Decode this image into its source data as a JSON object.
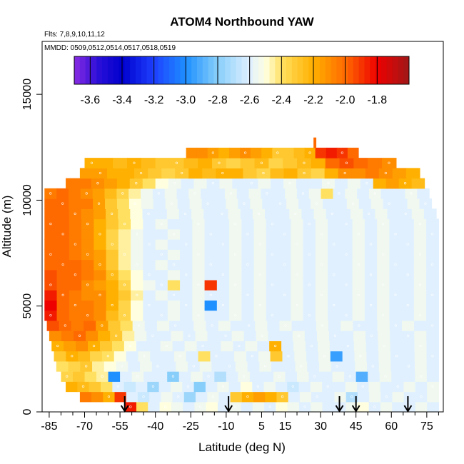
{
  "chart_data": {
    "type": "heatmap",
    "title": "ATOM4 Northbound YAW",
    "flights_label": "Flts: 7,8,9,10,11,12",
    "dates_label": "MMDD: 0509,0512,0514,0517,0518,0519",
    "xlabel": "Latitude (deg N)",
    "ylabel": "Altitude (m)",
    "xlim": [
      -88,
      82
    ],
    "ylim": [
      0,
      17500
    ],
    "x_ticks": [
      -85,
      -70,
      -55,
      -40,
      -25,
      -10,
      5,
      15,
      30,
      45,
      60,
      75
    ],
    "x_tick_labels": [
      "-85",
      "-70",
      "-55",
      "-40",
      "-25",
      "-10",
      "5",
      "15",
      "30",
      "45",
      "60",
      "75"
    ],
    "x_minor_ticks": [
      -80,
      -75,
      -65,
      -60,
      -50,
      -45,
      -35,
      -30,
      -20,
      -15,
      -5,
      0,
      10,
      20,
      25,
      35,
      40,
      50,
      55,
      65,
      70,
      80
    ],
    "y_ticks": [
      0,
      5000,
      10000,
      15000
    ],
    "y_tick_labels": [
      "0",
      "5000",
      "10000",
      "15000"
    ],
    "colorbar": {
      "min": -3.7,
      "max": -1.6,
      "ticks": [
        -3.6,
        -3.4,
        -3.2,
        -3.0,
        -2.8,
        -2.6,
        -2.4,
        -2.2,
        -2.0,
        -1.8
      ],
      "tick_labels": [
        "-3.6",
        "-3.4",
        "-3.2",
        "-3.0",
        "-2.8",
        "-2.6",
        "-2.4",
        "-2.2",
        "-2.0",
        "-1.8"
      ],
      "stops": [
        {
          "v": -3.7,
          "color": "#8a2be2"
        },
        {
          "v": -3.55,
          "color": "#2a0fd8"
        },
        {
          "v": -3.4,
          "color": "#0000cd"
        },
        {
          "v": -3.2,
          "color": "#1e40ff"
        },
        {
          "v": -3.0,
          "color": "#1e90ff"
        },
        {
          "v": -2.8,
          "color": "#87cefa"
        },
        {
          "v": -2.6,
          "color": "#e0f0ff"
        },
        {
          "v": -2.5,
          "color": "#ffffe0"
        },
        {
          "v": -2.4,
          "color": "#ffe060"
        },
        {
          "v": -2.2,
          "color": "#ffb000"
        },
        {
          "v": -2.0,
          "color": "#ff6a00"
        },
        {
          "v": -1.8,
          "color": "#ee0000"
        },
        {
          "v": -1.6,
          "color": "#a01818"
        }
      ]
    },
    "profile_arrows_lat": [
      -53,
      -9,
      38,
      45,
      67
    ],
    "row_height_m": 480,
    "rows": [
      {
        "y0": 0,
        "lat_min": -53,
        "lat_max": 80,
        "values": [
          -1.85,
          -2.4,
          -2.6,
          -2.5,
          -2.55,
          -2.6,
          -2.55,
          -2.5,
          -2.6,
          -2.55,
          -2.6,
          -2.55,
          -2.6,
          -2.5,
          -2.55,
          -2.6,
          -2.55,
          -2.6,
          -2.6,
          -2.55,
          -2.5,
          -2.6,
          -2.55,
          -2.6,
          -2.6,
          -2.55,
          -2.6
        ]
      },
      {
        "y0": 480,
        "lat_min": -72,
        "lat_max": 80,
        "values": [
          -2.05,
          -2.1,
          -2.2,
          -1.9,
          -2.6,
          -2.65,
          -2.6,
          -2.55,
          -2.6,
          -2.75,
          -2.6,
          -2.55,
          -2.6,
          -2.3,
          -2.2,
          -2.15,
          -2.2,
          -2.3,
          -2.6,
          -2.55,
          -2.6,
          -2.6,
          -2.55,
          -2.7,
          -2.6,
          -2.55,
          -2.6,
          -2.55,
          -2.6,
          -2.6,
          -2.55
        ]
      },
      {
        "y0": 960,
        "lat_min": -78,
        "lat_max": 80,
        "values": [
          -2.2,
          -2.25,
          -2.3,
          -2.4,
          -2.6,
          -2.65,
          -2.6,
          -2.75,
          -2.6,
          -2.55,
          -2.6,
          -2.8,
          -2.6,
          -2.55,
          -2.6,
          -2.5,
          -2.6,
          -2.55,
          -2.6,
          -2.65,
          -2.6,
          -2.55,
          -2.6,
          -2.6,
          -2.55,
          -2.6,
          -2.55,
          -2.6,
          -2.6,
          -2.55,
          -2.6,
          -2.55
        ]
      },
      {
        "y0": 1440,
        "lat_min": -80,
        "lat_max": 80,
        "values": [
          -2.35,
          -2.3,
          -2.4,
          -2.45,
          -3.0,
          -2.6,
          -2.55,
          -2.6,
          -2.6,
          -2.8,
          -2.6,
          -2.55,
          -2.6,
          -2.7,
          -2.6,
          -2.55,
          -2.6,
          -2.6,
          -2.55,
          -2.6,
          -2.55,
          -2.6,
          -2.6,
          -2.55,
          -2.6,
          -2.9,
          -2.6,
          -2.55,
          -2.6,
          -2.6,
          -2.55,
          -2.6
        ]
      },
      {
        "y0": 1920,
        "lat_min": -82,
        "lat_max": 80,
        "values": [
          -2.4,
          -2.35,
          -2.3,
          -2.45,
          -2.5,
          -2.55,
          -2.6,
          -2.55,
          -2.6,
          -2.6,
          -2.55,
          -2.6,
          -2.55,
          -2.6,
          -2.6,
          -2.55,
          -2.6,
          -2.55,
          -2.6,
          -2.6,
          -2.55,
          -2.6,
          -2.55,
          -2.6,
          -2.6,
          -2.55,
          -2.6,
          -2.55,
          -2.6,
          -2.6,
          -2.55,
          -2.6
        ]
      },
      {
        "y0": 2400,
        "lat_min": -83,
        "lat_max": 80,
        "values": [
          -2.3,
          -2.2,
          -2.25,
          -2.35,
          -2.4,
          -2.5,
          -2.6,
          -2.55,
          -2.6,
          -2.6,
          -2.55,
          -2.6,
          -2.4,
          -2.6,
          -2.6,
          -2.55,
          -2.6,
          -2.55,
          -2.3,
          -2.6,
          -2.55,
          -2.6,
          -2.55,
          -2.95,
          -2.6,
          -2.55,
          -2.6,
          -2.55,
          -2.6,
          -2.6,
          -2.55,
          -2.6
        ]
      },
      {
        "y0": 2880,
        "lat_min": -84,
        "lat_max": 80,
        "values": [
          -2.2,
          -2.15,
          -2.1,
          -2.2,
          -2.3,
          -2.4,
          -2.5,
          -2.6,
          -2.6,
          -2.55,
          -2.6,
          -2.55,
          -2.6,
          -2.6,
          -2.55,
          -2.6,
          -2.55,
          -2.6,
          -2.2,
          -2.6,
          -2.55,
          -2.6,
          -2.55,
          -2.6,
          -2.6,
          -2.55,
          -2.6,
          -2.55,
          -2.6,
          -2.6,
          -2.55,
          -2.6
        ]
      },
      {
        "y0": 3360,
        "lat_min": -85,
        "lat_max": 80,
        "values": [
          -2.1,
          -2.05,
          -2.0,
          -2.1,
          -2.2,
          -2.3,
          -2.45,
          -2.55,
          -2.6,
          -2.6,
          -2.55,
          -2.6,
          -2.55,
          -2.6,
          -2.6,
          -2.55,
          -2.6,
          -2.55,
          -2.6,
          -2.6,
          -2.55,
          -2.6,
          -2.55,
          -2.6,
          -2.6,
          -2.55,
          -2.6,
          -2.55,
          -2.6,
          -2.6,
          -2.55,
          -2.6
        ]
      },
      {
        "y0": 3840,
        "lat_min": -86,
        "lat_max": 80,
        "values": [
          -1.95,
          -2.0,
          -2.05,
          -2.0,
          -2.15,
          -2.3,
          -2.4,
          -2.55,
          -2.6,
          -2.55,
          -2.6,
          -2.6,
          -2.55,
          -2.6,
          -2.55,
          -2.6,
          -2.6,
          -2.55,
          -2.6,
          -2.55,
          -2.6,
          -2.6,
          -2.55,
          -2.6,
          -2.55,
          -2.6,
          -2.6,
          -2.55,
          -2.6,
          -2.55,
          -2.6,
          -2.6
        ]
      },
      {
        "y0": 4320,
        "lat_min": -87,
        "lat_max": 80,
        "values": [
          -1.85,
          -2.0,
          -2.05,
          -2.05,
          -2.1,
          -2.25,
          -2.35,
          -2.5,
          -2.6,
          -2.6,
          -2.55,
          -2.6,
          -2.55,
          -2.6,
          -2.6,
          -2.55,
          -2.6,
          -2.55,
          -2.6,
          -2.6,
          -2.55,
          -2.6,
          -2.55,
          -2.6,
          -2.6,
          -2.55,
          -2.6,
          -2.55,
          -2.6,
          -2.6,
          -2.55,
          -2.6
        ]
      },
      {
        "y0": 4800,
        "lat_min": -87,
        "lat_max": 80,
        "values": [
          -1.8,
          -2.0,
          -2.05,
          -2.05,
          -2.1,
          -2.2,
          -2.35,
          -2.5,
          -2.6,
          -2.6,
          -2.55,
          -2.6,
          -2.55,
          -3.0,
          -2.6,
          -2.55,
          -2.6,
          -2.55,
          -2.6,
          -2.6,
          -2.55,
          -2.6,
          -2.55,
          -2.6,
          -2.6,
          -2.55,
          -2.6,
          -2.55,
          -2.6,
          -2.6,
          -2.55,
          -2.6
        ]
      },
      {
        "y0": 5280,
        "lat_min": -87,
        "lat_max": 80,
        "values": [
          -1.85,
          -2.0,
          -2.05,
          -2.1,
          -2.1,
          -2.2,
          -2.3,
          -2.45,
          -2.6,
          -2.55,
          -2.6,
          -2.6,
          -2.55,
          -2.6,
          -2.6,
          -2.55,
          -2.6,
          -2.55,
          -2.6,
          -2.6,
          -2.55,
          -2.6,
          -2.55,
          -2.6,
          -2.6,
          -2.55,
          -2.6,
          -2.55,
          -2.6,
          -2.6,
          -2.55,
          -2.6
        ]
      },
      {
        "y0": 5760,
        "lat_min": -87,
        "lat_max": 80,
        "values": [
          -1.95,
          -2.0,
          -2.0,
          -2.1,
          -2.15,
          -2.2,
          -2.35,
          -2.5,
          -2.55,
          -2.6,
          -2.4,
          -2.6,
          -2.55,
          -1.9,
          -2.6,
          -2.55,
          -2.6,
          -2.55,
          -2.6,
          -2.6,
          -2.55,
          -2.6,
          -2.55,
          -2.6,
          -2.6,
          -2.55,
          -2.6,
          -2.55,
          -2.6,
          -2.6,
          -2.55,
          -2.6
        ]
      },
      {
        "y0": 6240,
        "lat_min": -87,
        "lat_max": 80,
        "values": [
          -1.95,
          -2.0,
          -2.0,
          -2.05,
          -2.1,
          -2.25,
          -2.4,
          -2.5,
          -2.6,
          -2.6,
          -2.55,
          -2.6,
          -2.55,
          -2.6,
          -2.6,
          -2.55,
          -2.6,
          -2.55,
          -2.6,
          -2.6,
          -2.55,
          -2.6,
          -2.55,
          -2.6,
          -2.6,
          -2.55,
          -2.6,
          -2.55,
          -2.6,
          -2.6,
          -2.55,
          -2.6
        ]
      },
      {
        "y0": 6720,
        "lat_min": -87,
        "lat_max": 80,
        "values": [
          -2.0,
          -2.0,
          -2.0,
          -2.05,
          -2.15,
          -2.3,
          -2.45,
          -2.55,
          -2.6,
          -2.55,
          -2.6,
          -2.6,
          -2.55,
          -2.6,
          -2.6,
          -2.55,
          -2.6,
          -2.55,
          -2.6,
          -2.6,
          -2.55,
          -2.6,
          -2.55,
          -2.6,
          -2.6,
          -2.55,
          -2.6,
          -2.55,
          -2.6,
          -2.6,
          -2.55,
          -2.6
        ]
      },
      {
        "y0": 7200,
        "lat_min": -87,
        "lat_max": 80,
        "values": [
          -2.0,
          -2.0,
          -2.05,
          -2.1,
          -2.15,
          -2.3,
          -2.45,
          -2.55,
          -2.6,
          -2.6,
          -2.55,
          -2.6,
          -2.55,
          -2.6,
          -2.6,
          -2.55,
          -2.6,
          -2.55,
          -2.6,
          -2.6,
          -2.55,
          -2.6,
          -2.55,
          -2.6,
          -2.6,
          -2.55,
          -2.6,
          -2.55,
          -2.6,
          -2.6,
          -2.55,
          -2.6
        ]
      },
      {
        "y0": 7680,
        "lat_min": -87,
        "lat_max": 80,
        "values": [
          -2.0,
          -2.0,
          -2.05,
          -2.1,
          -2.2,
          -2.35,
          -2.45,
          -2.55,
          -2.6,
          -2.55,
          -2.6,
          -2.6,
          -2.55,
          -2.6,
          -2.6,
          -2.55,
          -2.6,
          -2.55,
          -2.6,
          -2.6,
          -2.55,
          -2.6,
          -2.55,
          -2.6,
          -2.6,
          -2.55,
          -2.6,
          -2.55,
          -2.6,
          -2.6,
          -2.55,
          -2.6
        ]
      },
      {
        "y0": 8160,
        "lat_min": -87,
        "lat_max": 80,
        "values": [
          -2.0,
          -2.0,
          -2.05,
          -2.1,
          -2.2,
          -2.35,
          -2.45,
          -2.55,
          -2.6,
          -2.6,
          -2.55,
          -2.6,
          -2.55,
          -2.6,
          -2.6,
          -2.55,
          -2.6,
          -2.55,
          -2.6,
          -2.6,
          -2.55,
          -2.6,
          -2.55,
          -2.6,
          -2.6,
          -2.55,
          -2.6,
          -2.55,
          -2.6,
          -2.6,
          -2.55,
          -2.6
        ]
      },
      {
        "y0": 8640,
        "lat_min": -87,
        "lat_max": 80,
        "values": [
          -2.0,
          -2.0,
          -2.05,
          -2.1,
          -2.2,
          -2.3,
          -2.4,
          -2.5,
          -2.6,
          -2.55,
          -2.6,
          -2.6,
          -2.55,
          -2.6,
          -2.6,
          -2.55,
          -2.6,
          -2.55,
          -2.6,
          -2.6,
          -2.55,
          -2.6,
          -2.55,
          -2.6,
          -2.6,
          -2.55,
          -2.6,
          -2.55,
          -2.6,
          -2.6,
          -2.55,
          -2.6
        ]
      },
      {
        "y0": 9120,
        "lat_min": -87,
        "lat_max": 79,
        "values": [
          -2.0,
          -2.0,
          -2.05,
          -2.1,
          -2.15,
          -2.3,
          -2.4,
          -2.5,
          -2.6,
          -2.6,
          -2.55,
          -2.6,
          -2.55,
          -2.6,
          -2.6,
          -2.55,
          -2.6,
          -2.55,
          -2.6,
          -2.6,
          -2.55,
          -2.6,
          -2.55,
          -2.6,
          -2.6,
          -2.55,
          -2.6,
          -2.55,
          -2.6,
          -2.6,
          -2.55,
          -2.6
        ]
      },
      {
        "y0": 9600,
        "lat_min": -87,
        "lat_max": 77,
        "values": [
          -2.0,
          -2.0,
          -2.05,
          -2.05,
          -2.15,
          -2.3,
          -2.4,
          -2.5,
          -2.55,
          -2.6,
          -2.55,
          -2.6,
          -2.55,
          -2.6,
          -2.6,
          -2.55,
          -2.6,
          -2.55,
          -2.6,
          -2.6,
          -2.55,
          -2.6,
          -2.55,
          -2.6,
          -2.6,
          -2.55,
          -2.6,
          -2.55,
          -2.6,
          -2.6,
          -2.55,
          -2.6
        ]
      },
      {
        "y0": 10080,
        "lat_min": -87,
        "lat_max": 76,
        "values": [
          -2.05,
          -2.0,
          -2.05,
          -2.1,
          -2.15,
          -2.25,
          -2.35,
          -2.45,
          -2.55,
          -2.6,
          -2.55,
          -2.6,
          -2.55,
          -2.6,
          -2.6,
          -2.55,
          -2.6,
          -2.55,
          -2.6,
          -2.6,
          -2.55,
          -2.6,
          -2.55,
          -2.4,
          -2.6,
          -2.55,
          -2.6,
          -2.55,
          -2.6,
          -2.6,
          -2.55,
          -2.6
        ]
      },
      {
        "y0": 10560,
        "lat_min": -78,
        "lat_max": 74,
        "values": [
          -2.05,
          -2.05,
          -2.1,
          -2.15,
          -2.2,
          -2.3,
          -2.4,
          -2.5,
          -2.55,
          -2.6,
          -2.55,
          -2.6,
          -2.55,
          -2.6,
          -2.6,
          -2.55,
          -2.6,
          -2.55,
          -2.6,
          -2.6,
          -2.55,
          -2.6,
          -2.55,
          -2.6,
          -2.2,
          -2.15,
          -2.2,
          -2.25
        ]
      },
      {
        "y0": 11040,
        "lat_min": -72,
        "lat_max": 72,
        "values": [
          -2.15,
          -2.15,
          -2.2,
          -2.2,
          -2.25,
          -2.3,
          -2.35,
          -2.3,
          -2.2,
          -2.25,
          -2.2,
          -2.2,
          -2.3,
          -2.35,
          -2.25,
          -2.2,
          -2.3,
          -2.35,
          -2.2,
          -2.1,
          -2.1,
          -2.05,
          -2.1,
          -2.15,
          -2.2
        ]
      },
      {
        "y0": 11520,
        "lat_min": -70,
        "lat_max": 62,
        "values": [
          -2.2,
          -2.2,
          -2.25,
          -2.2,
          -2.25,
          -2.3,
          -2.3,
          -2.25,
          -2.2,
          -2.3,
          -2.35,
          -2.3,
          -2.25,
          -2.35,
          -2.3,
          -2.25,
          -2.2,
          -2.0,
          -1.95,
          -2.0,
          -2.05,
          -2.1
        ]
      },
      {
        "y0": 12000,
        "lat_min": -27,
        "lat_max": 46,
        "values": [
          -2.1,
          -2.1,
          -2.15,
          -2.2,
          -2.15,
          -2.1,
          -2.15,
          -2.2,
          -2.3,
          -2.3,
          -2.25,
          -2.2,
          -1.9,
          -1.85,
          -1.9,
          -2.0
        ]
      },
      {
        "y0": 12480,
        "lat_min": 27,
        "lat_max": 28,
        "values": [
          -2.0
        ]
      }
    ]
  }
}
